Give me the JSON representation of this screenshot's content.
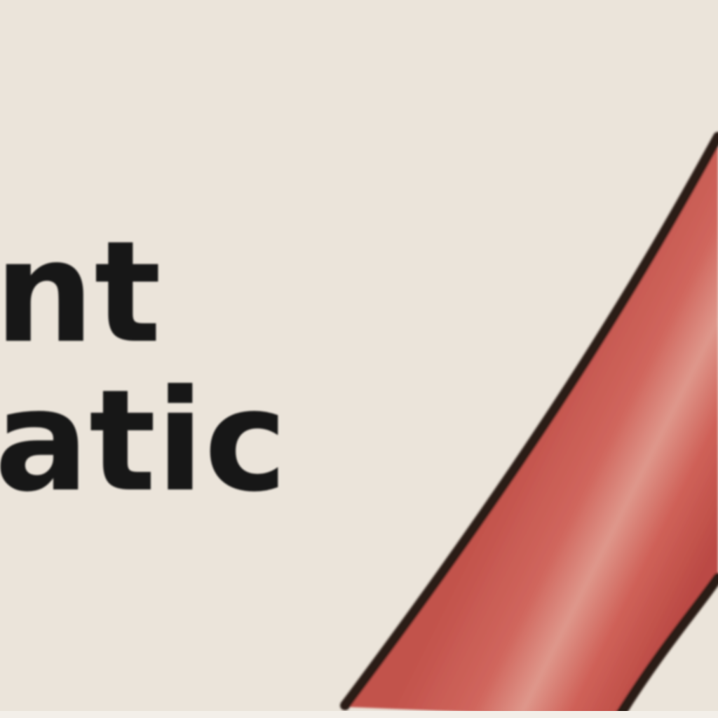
{
  "labels": {
    "line_1": "nt",
    "line_2": "atic"
  },
  "colors": {
    "background": "#ebe4da",
    "vessel_fill": "#c9574f",
    "vessel_highlight": "#de958a",
    "vessel_outline": "#2a1a18",
    "text": "#171717"
  },
  "icons": {
    "vessel": "blood-vessel-icon"
  }
}
